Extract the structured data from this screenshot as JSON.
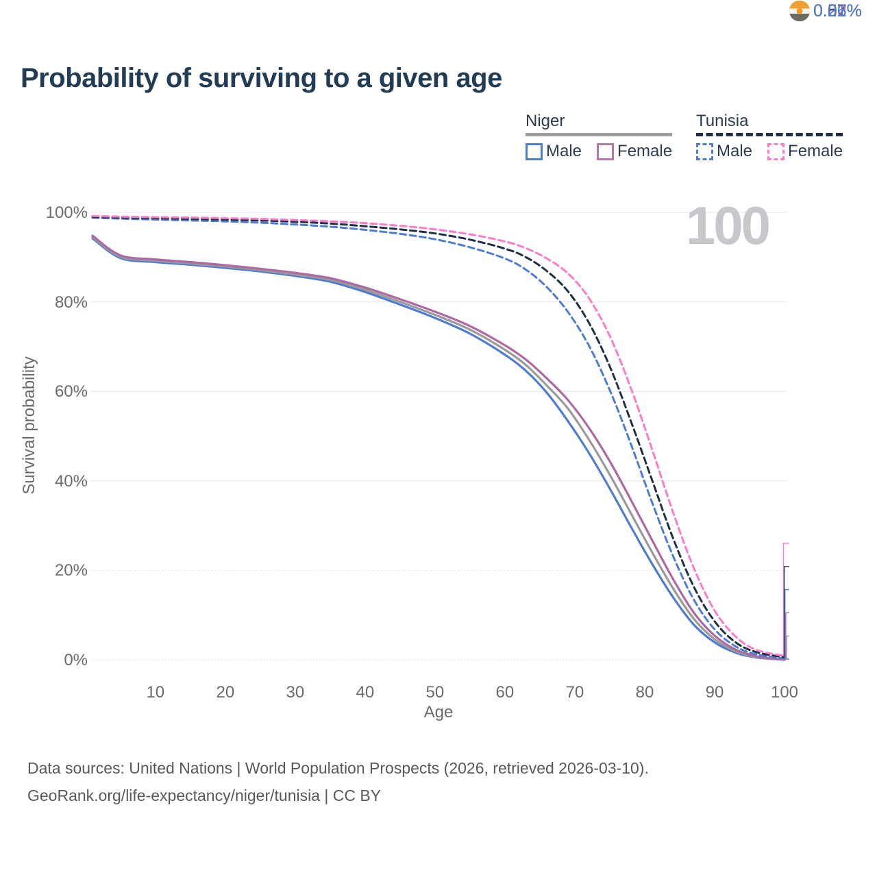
{
  "title": "Probability of surviving to a given age",
  "watermark": "100",
  "legend": {
    "groups": [
      {
        "country": "Niger",
        "line_style": "solid",
        "underline_color": "#9e9e9e",
        "items": [
          {
            "label": "Male",
            "color": "#4d7cd3",
            "dashed": false
          },
          {
            "label": "Female",
            "color": "#b377a9",
            "dashed": false
          }
        ]
      },
      {
        "country": "Tunisia",
        "line_style": "dashed",
        "underline_color": "#1f3044",
        "items": [
          {
            "label": "Male",
            "color": "#4d7cd3",
            "dashed": true
          },
          {
            "label": "Female",
            "color": "#fd7cc8",
            "dashed": true
          }
        ]
      }
    ]
  },
  "chart_data": {
    "type": "line",
    "title": "Probability of surviving to a given age",
    "xlabel": "Age",
    "ylabel": "Survival probability",
    "xlim": [
      1,
      100
    ],
    "ylim": [
      0,
      100
    ],
    "grid": true,
    "legend_position": "top-right",
    "x_ticks": [
      10,
      20,
      30,
      40,
      50,
      60,
      70,
      80,
      90,
      100
    ],
    "y_ticks": [
      "100%",
      "80%",
      "60%",
      "40%",
      "20%",
      "0%"
    ],
    "y_ticks_pct": [
      100,
      80,
      60,
      40,
      20,
      0
    ],
    "x": [
      1,
      5,
      10,
      15,
      20,
      25,
      30,
      35,
      40,
      45,
      50,
      55,
      60,
      63,
      66,
      69,
      72,
      75,
      78,
      81,
      84,
      87,
      90,
      93,
      96,
      100
    ],
    "series": [
      {
        "name": "Niger Male",
        "country": "Niger",
        "sex": "Male",
        "style": "solid",
        "color": "#4d7cd3",
        "values": [
          94.2,
          89.8,
          88.9,
          88.3,
          87.6,
          86.8,
          85.8,
          84.5,
          82.2,
          79.4,
          76.4,
          72.9,
          68.2,
          64.6,
          59.7,
          53.4,
          46.3,
          38.3,
          29.8,
          21.6,
          14.1,
          7.9,
          3.9,
          1.6,
          0.5,
          0.01
        ],
        "end_label": "0.01%"
      },
      {
        "name": "Niger",
        "country": "Niger",
        "sex": "Both",
        "style": "solid",
        "color": "#9a9a9a",
        "values": [
          94.5,
          90.1,
          89.2,
          88.6,
          87.9,
          87.1,
          86.1,
          84.9,
          82.7,
          80.0,
          77.1,
          73.8,
          69.3,
          65.9,
          61.3,
          56.2,
          49.3,
          41.4,
          32.8,
          24.2,
          16.1,
          9.2,
          4.6,
          1.9,
          0.6,
          0.01
        ],
        "end_label": "0.01%"
      },
      {
        "name": "Niger Female",
        "country": "Niger",
        "sex": "Female",
        "style": "solid",
        "color": "#ae68a2",
        "values": [
          94.8,
          90.4,
          89.5,
          88.9,
          88.2,
          87.4,
          86.5,
          85.3,
          83.2,
          80.6,
          77.8,
          74.6,
          70.3,
          67.1,
          62.9,
          58.1,
          51.9,
          44.4,
          35.8,
          26.9,
          18.2,
          10.6,
          5.4,
          2.3,
          0.8,
          0.02
        ],
        "end_label": "0.02%"
      },
      {
        "name": "Tunisia Male",
        "country": "Tunisia",
        "sex": "Male",
        "style": "dashed",
        "color": "#4d7cd3",
        "values": [
          98.8,
          98.6,
          98.4,
          98.2,
          98.0,
          97.7,
          97.3,
          96.8,
          96.1,
          95.2,
          94.0,
          92.2,
          89.7,
          87.2,
          83.3,
          77.8,
          70.3,
          60.3,
          48.3,
          35.4,
          23.4,
          13.5,
          6.8,
          3.0,
          1.2,
          0.26
        ],
        "end_label": "0.26%"
      },
      {
        "name": "Tunisia",
        "country": "Tunisia",
        "sex": "Both",
        "style": "dashed",
        "color": "#1f3044",
        "values": [
          99.0,
          98.85,
          98.7,
          98.55,
          98.4,
          98.2,
          97.9,
          97.5,
          96.9,
          96.2,
          95.3,
          93.9,
          91.9,
          90.0,
          86.9,
          82.4,
          75.4,
          65.6,
          53.4,
          40.4,
          27.4,
          16.4,
          8.6,
          3.9,
          1.7,
          0.57
        ],
        "end_label": "0.57%"
      },
      {
        "name": "Tunisia Female",
        "country": "Tunisia",
        "sex": "Female",
        "style": "dashed",
        "color": "#fd7cc8",
        "values": [
          99.2,
          99.05,
          98.95,
          98.85,
          98.7,
          98.55,
          98.3,
          98.0,
          97.6,
          97.0,
          96.2,
          95.1,
          93.5,
          92.0,
          89.7,
          86.4,
          80.9,
          72.4,
          60.8,
          47.3,
          33.2,
          20.6,
          11.0,
          5.2,
          2.2,
          0.87
        ],
        "end_label": "0.87%"
      }
    ]
  },
  "end_labels": {
    "items": [
      {
        "value": "0.87%",
        "color": "#fd7cc8",
        "flag": "tunisia-flag",
        "series": "Tunisia Female"
      },
      {
        "value": "0.57%",
        "color": "#2d3b51",
        "flag": "tunisia-flag",
        "series": "Tunisia"
      },
      {
        "value": "0.26%",
        "color": "#4d7cd3",
        "flag": "tunisia-flag",
        "series": "Tunisia Male"
      },
      {
        "value": "0.02%",
        "color": "#ae68a2",
        "flag": "niger-flag",
        "series": "Niger Female"
      },
      {
        "value": "0.01%",
        "color": "#9a9a9a",
        "flag": "niger-flag",
        "series": "Niger"
      },
      {
        "value": "0.01%",
        "color": "#4d7cd3",
        "flag": "niger-flag",
        "series": "Niger Male"
      }
    ]
  },
  "footer": {
    "line1": "Data sources: United Nations | World Population Prospects (2026, retrieved 2026-03-10).",
    "line2": "GeoRank.org/life-expectancy/niger/tunisia | CC BY"
  }
}
